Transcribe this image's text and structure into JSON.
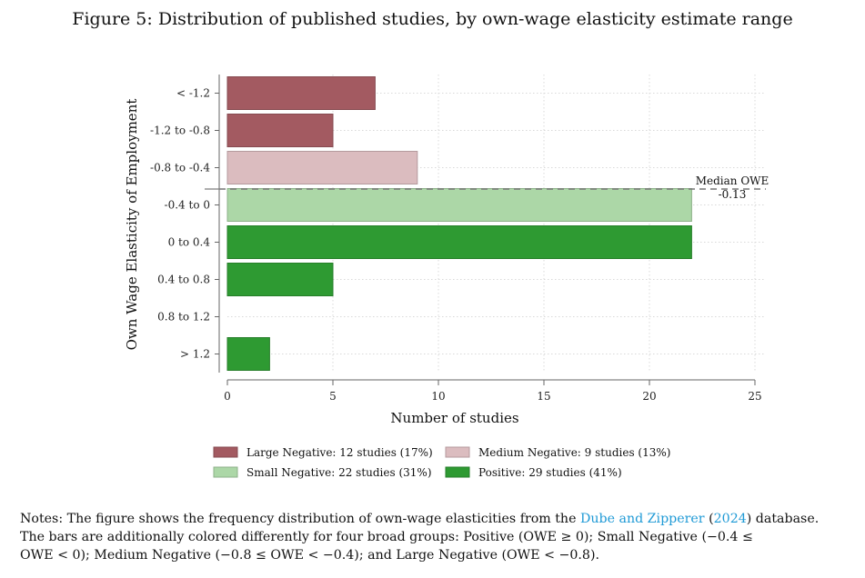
{
  "title": "Figure 5: Distribution of published studies, by own-wage elasticity estimate range",
  "chart_data": {
    "type": "bar",
    "orientation": "horizontal",
    "categories": [
      "< -1.2",
      "-1.2 to -0.8",
      "-0.8 to -0.4",
      "-0.4 to 0",
      "0 to 0.4",
      "0.4 to 0.8",
      "0.8 to 1.2",
      "> 1.2"
    ],
    "values": [
      7,
      5,
      9,
      22,
      22,
      5,
      0,
      2
    ],
    "groups": [
      "large_negative",
      "large_negative",
      "medium_negative",
      "small_negative",
      "positive",
      "positive",
      "positive",
      "positive"
    ],
    "xlabel": "Number of studies",
    "ylabel": "Own Wage Elasticity of Employment",
    "xlim": [
      0,
      25
    ],
    "xticks": [
      0,
      5,
      10,
      15,
      20,
      25
    ],
    "grid": true,
    "median_line": {
      "label": "Median OWE",
      "value_label": "-0.13",
      "value": -0.13
    },
    "legend": [
      {
        "key": "large_negative",
        "label": "Large Negative: 12 studies (17%)",
        "color": "#a35a61"
      },
      {
        "key": "medium_negative",
        "label": "Medium Negative: 9 studies (13%)",
        "color": "#dbbcbf"
      },
      {
        "key": "small_negative",
        "label": "Small Negative: 22 studies (31%)",
        "color": "#acd7a7"
      },
      {
        "key": "positive",
        "label": "Positive: 29 studies (41%)",
        "color": "#2e9a32"
      }
    ],
    "legend_position": "bottom"
  },
  "notes": {
    "prefix": "Notes: The figure shows the frequency distribution of own-wage elasticities from the ",
    "citation_authors": "Dube and Zipperer",
    "citation_open": " (",
    "citation_year": "2024",
    "after_citation": ") database.",
    "line2": "The bars are additionally colored differently for four broad groups: Positive (OWE ≥ 0); Small Negative (−0.4 ≤",
    "line3": "OWE < 0); Medium Negative (−0.8 ≤ OWE < −0.4); and Large Negative (OWE < −0.8)."
  }
}
